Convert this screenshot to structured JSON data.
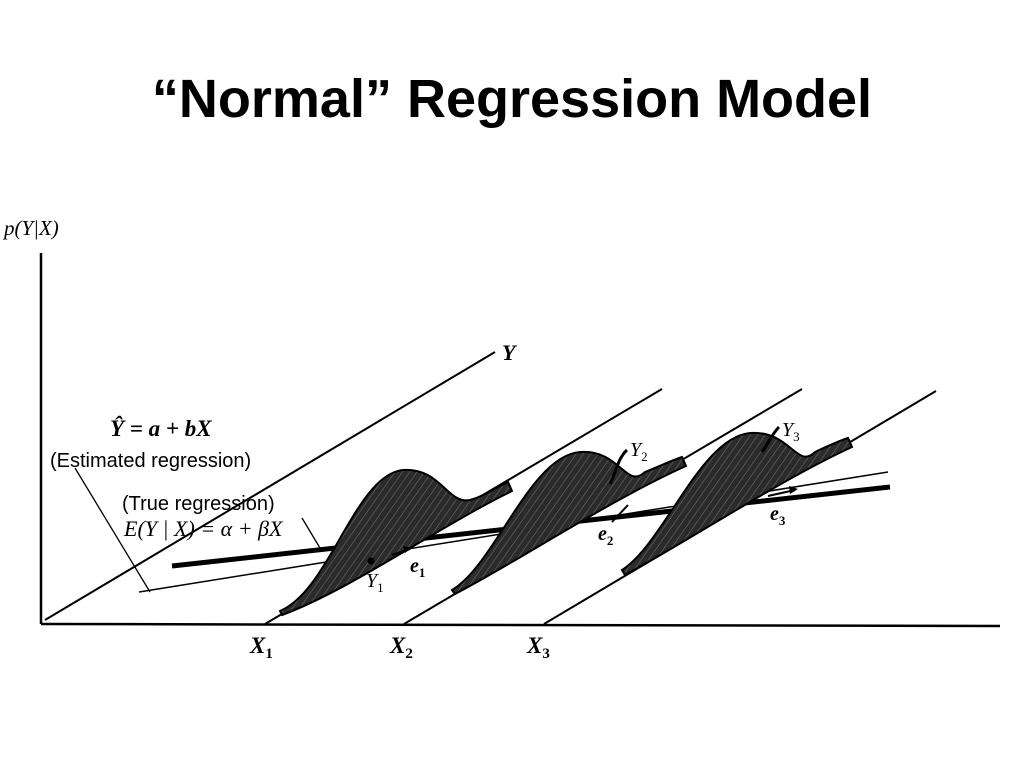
{
  "slide": {
    "title": "“Normal” Regression Model"
  },
  "diagram": {
    "y_axis_label": "p(Y|X)",
    "far_axis_label": "Y",
    "estimated_equation": "Ŷ = a + bX",
    "estimated_caption": "(Estimated regression)",
    "true_caption": "(True regression)",
    "true_equation": "E(Y | X) = α + βX",
    "x_labels": [
      "X",
      "X",
      "X"
    ],
    "x_subscripts": [
      "1",
      "2",
      "3"
    ],
    "observation_labels": [
      "Y",
      "Y",
      "Y"
    ],
    "observation_subscripts": [
      "1",
      "2",
      "3"
    ],
    "residual_labels": [
      "e",
      "e",
      "e"
    ],
    "residual_subscripts": [
      "1",
      "2",
      "3"
    ]
  },
  "colors": {
    "ink": "#000000",
    "curve_fill": "#2b2b2b",
    "background": "#ffffff"
  }
}
